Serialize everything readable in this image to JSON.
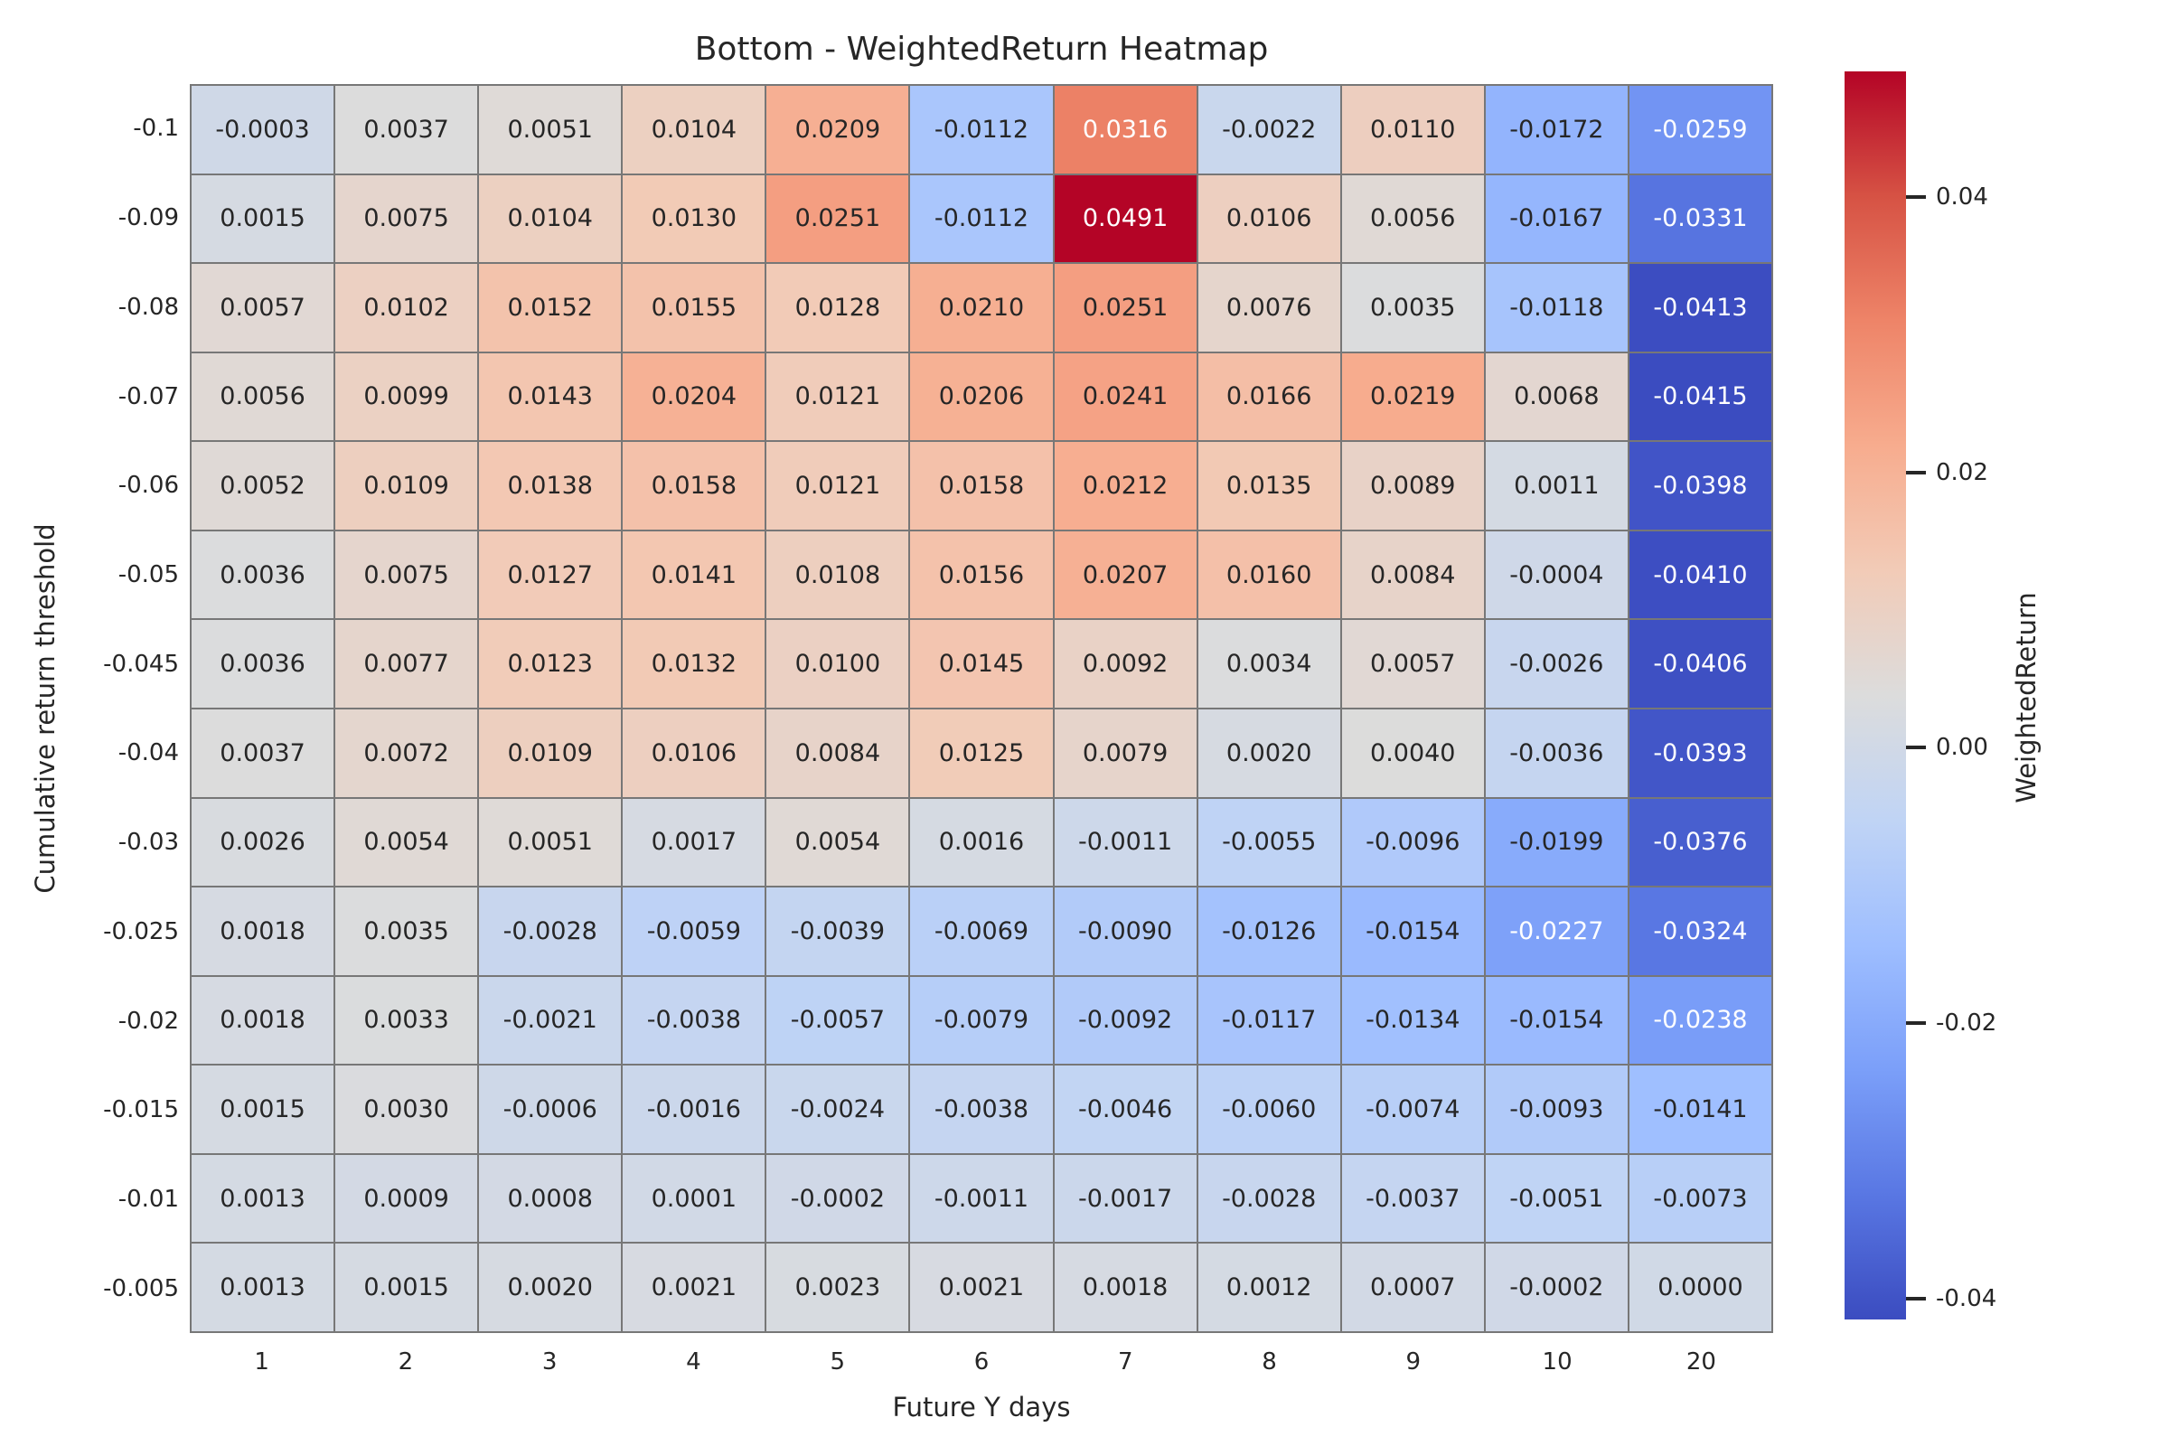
{
  "figure": {
    "title": "Bottom - WeightedReturn Heatmap",
    "x_axis_label": "Future Y days",
    "y_axis_label": "Cumulative return threshold"
  },
  "chart_data": {
    "type": "heatmap",
    "title": "Bottom - WeightedReturn Heatmap",
    "xlabel": "Future Y days",
    "ylabel": "Cumulative return threshold",
    "columns": [
      "1",
      "2",
      "3",
      "4",
      "5",
      "6",
      "7",
      "8",
      "9",
      "10",
      "20"
    ],
    "rows": [
      "-0.1",
      "-0.09",
      "-0.08",
      "-0.07",
      "-0.06",
      "-0.05",
      "-0.045",
      "-0.04",
      "-0.03",
      "-0.025",
      "-0.02",
      "-0.015",
      "-0.01",
      "-0.005"
    ],
    "values": [
      [
        -0.0003,
        0.0037,
        0.0051,
        0.0104,
        0.0209,
        -0.0112,
        0.0316,
        -0.0022,
        0.011,
        -0.0172,
        -0.0259
      ],
      [
        0.0015,
        0.0075,
        0.0104,
        0.013,
        0.0251,
        -0.0112,
        0.0491,
        0.0106,
        0.0056,
        -0.0167,
        -0.0331
      ],
      [
        0.0057,
        0.0102,
        0.0152,
        0.0155,
        0.0128,
        0.021,
        0.0251,
        0.0076,
        0.0035,
        -0.0118,
        -0.0413
      ],
      [
        0.0056,
        0.0099,
        0.0143,
        0.0204,
        0.0121,
        0.0206,
        0.0241,
        0.0166,
        0.0219,
        0.0068,
        -0.0415
      ],
      [
        0.0052,
        0.0109,
        0.0138,
        0.0158,
        0.0121,
        0.0158,
        0.0212,
        0.0135,
        0.0089,
        0.0011,
        -0.0398
      ],
      [
        0.0036,
        0.0075,
        0.0127,
        0.0141,
        0.0108,
        0.0156,
        0.0207,
        0.016,
        0.0084,
        -0.0004,
        -0.041
      ],
      [
        0.0036,
        0.0077,
        0.0123,
        0.0132,
        0.01,
        0.0145,
        0.0092,
        0.0034,
        0.0057,
        -0.0026,
        -0.0406
      ],
      [
        0.0037,
        0.0072,
        0.0109,
        0.0106,
        0.0084,
        0.0125,
        0.0079,
        0.002,
        0.004,
        -0.0036,
        -0.0393
      ],
      [
        0.0026,
        0.0054,
        0.0051,
        0.0017,
        0.0054,
        0.0016,
        -0.0011,
        -0.0055,
        -0.0096,
        -0.0199,
        -0.0376
      ],
      [
        0.0018,
        0.0035,
        -0.0028,
        -0.0059,
        -0.0039,
        -0.0069,
        -0.009,
        -0.0126,
        -0.0154,
        -0.0227,
        -0.0324
      ],
      [
        0.0018,
        0.0033,
        -0.0021,
        -0.0038,
        -0.0057,
        -0.0079,
        -0.0092,
        -0.0117,
        -0.0134,
        -0.0154,
        -0.0238
      ],
      [
        0.0015,
        0.003,
        -0.0006,
        -0.0016,
        -0.0024,
        -0.0038,
        -0.0046,
        -0.006,
        -0.0074,
        -0.0093,
        -0.0141
      ],
      [
        0.0013,
        0.0009,
        0.0008,
        0.0001,
        -0.0002,
        -0.0011,
        -0.0017,
        -0.0028,
        -0.0037,
        -0.0051,
        -0.0073
      ],
      [
        0.0013,
        0.0015,
        0.002,
        0.0021,
        0.0023,
        0.0021,
        0.0018,
        0.0012,
        0.0007,
        -0.0002,
        0.0
      ]
    ],
    "value_format_decimals": 4,
    "colorbar": {
      "label": "WeightedReturn",
      "ticks": [
        0.04,
        0.02,
        0.0,
        -0.02,
        -0.04
      ],
      "tick_format_decimals": 2,
      "vmin": -0.0415,
      "vmax": 0.0491
    },
    "colormap": {
      "name": "coolwarm",
      "anchors": [
        "#3b4cc0",
        "#5977e3",
        "#7b9ff9",
        "#9ebeff",
        "#c0d4f5",
        "#dcdcdc",
        "#f2cbb7",
        "#f7ac8e",
        "#ee8468",
        "#d65244",
        "#b40426"
      ],
      "annotation_dark_color": "#262626",
      "annotation_light_color": "#ffffff",
      "luminance_threshold": 0.408
    },
    "grid_line_color": "#777777",
    "legend_position": "right",
    "grid": "off"
  }
}
